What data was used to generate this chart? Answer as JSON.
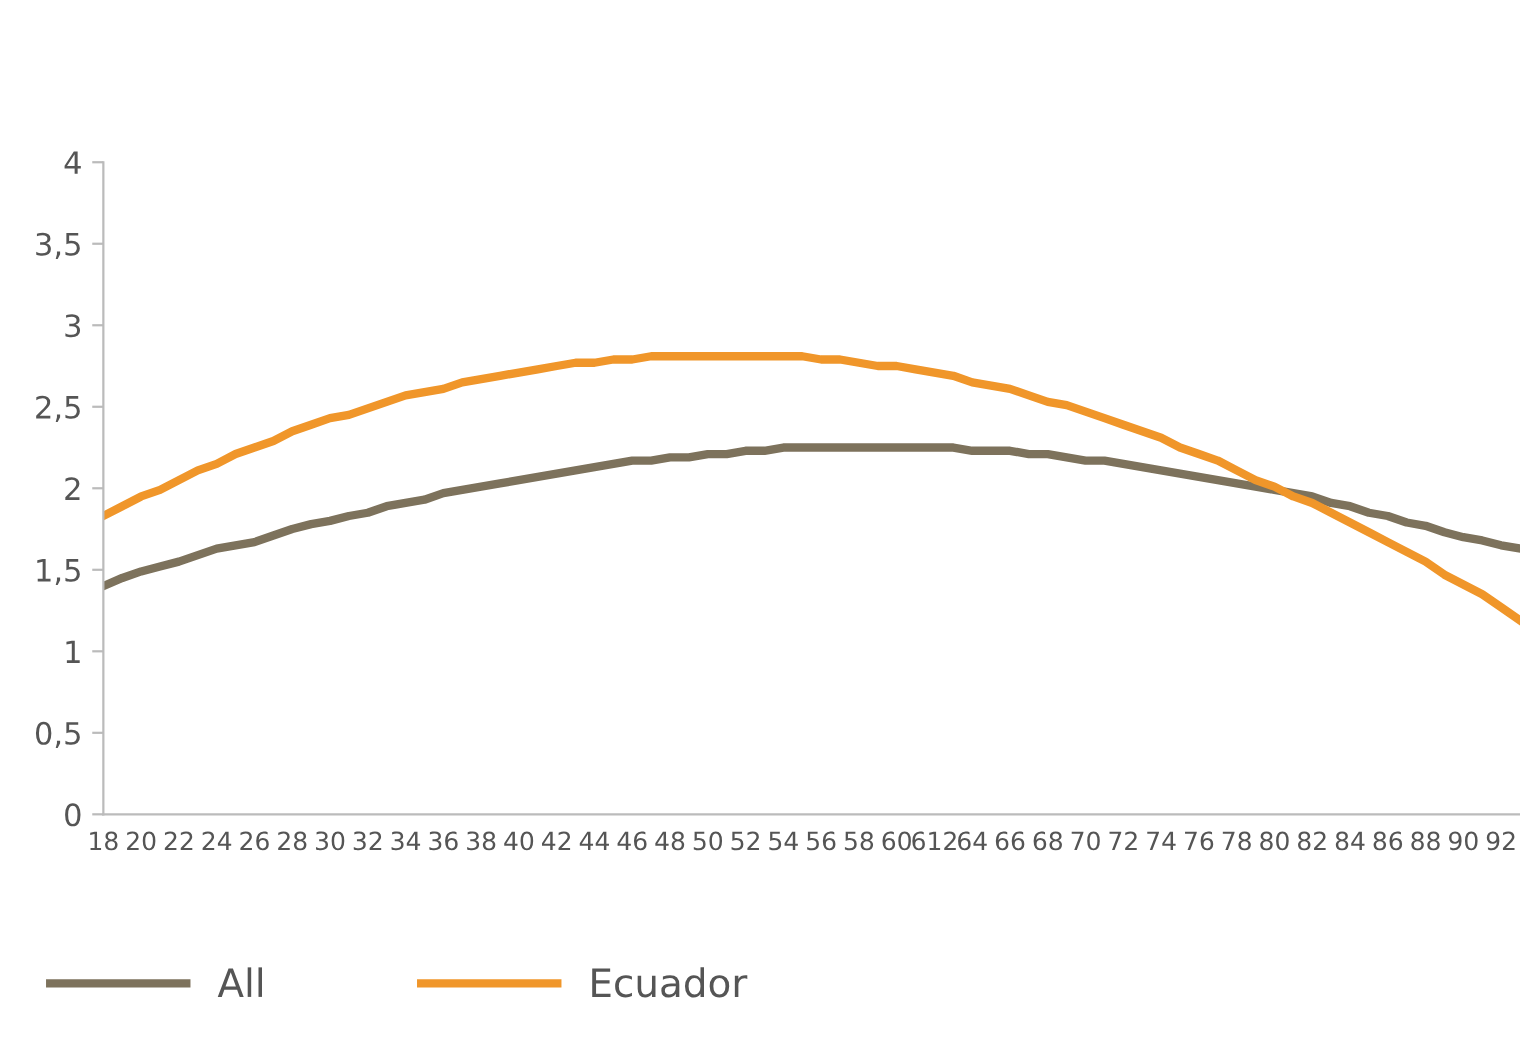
{
  "chart_data": {
    "type": "line",
    "categories": [
      "18",
      null,
      "20",
      null,
      "22",
      null,
      "24",
      null,
      "26",
      null,
      "28",
      null,
      "30",
      null,
      "32",
      null,
      "34",
      null,
      "36",
      null,
      "38",
      null,
      "40",
      null,
      "42",
      null,
      "44",
      null,
      "46",
      null,
      "48",
      null,
      "50",
      null,
      "52",
      null,
      "54",
      null,
      "56",
      null,
      "58",
      null,
      "60",
      null,
      "612",
      null,
      "64",
      null,
      "66",
      null,
      "68",
      null,
      "70",
      null,
      "72",
      null,
      "74",
      null,
      "76",
      null,
      "78",
      null,
      "80",
      null,
      "82",
      null,
      "84",
      null,
      "86",
      null,
      "88",
      null,
      "90",
      null,
      "92",
      null
    ],
    "series": [
      {
        "name": "All",
        "color": "#7d725c",
        "values": [
          1.4,
          1.45,
          1.49,
          1.52,
          1.55,
          1.59,
          1.63,
          1.65,
          1.67,
          1.71,
          1.75,
          1.78,
          1.8,
          1.83,
          1.85,
          1.89,
          1.91,
          1.93,
          1.97,
          1.99,
          2.01,
          2.03,
          2.05,
          2.07,
          2.09,
          2.11,
          2.13,
          2.15,
          2.17,
          2.17,
          2.19,
          2.19,
          2.21,
          2.21,
          2.23,
          2.23,
          2.25,
          2.25,
          2.25,
          2.25,
          2.25,
          2.25,
          2.25,
          2.25,
          2.25,
          2.25,
          2.23,
          2.23,
          2.23,
          2.21,
          2.21,
          2.19,
          2.17,
          2.17,
          2.15,
          2.13,
          2.11,
          2.09,
          2.07,
          2.05,
          2.03,
          2.01,
          1.99,
          1.97,
          1.95,
          1.91,
          1.89,
          1.85,
          1.83,
          1.79,
          1.77,
          1.73,
          1.7,
          1.68,
          1.65,
          1.63
        ]
      },
      {
        "name": "Ecuador",
        "color": "#f0962a",
        "values": [
          1.83,
          1.89,
          1.95,
          1.99,
          2.05,
          2.11,
          2.15,
          2.21,
          2.25,
          2.29,
          2.35,
          2.39,
          2.43,
          2.45,
          2.49,
          2.53,
          2.57,
          2.59,
          2.61,
          2.65,
          2.67,
          2.69,
          2.71,
          2.73,
          2.75,
          2.77,
          2.77,
          2.79,
          2.79,
          2.81,
          2.81,
          2.81,
          2.81,
          2.81,
          2.81,
          2.81,
          2.81,
          2.81,
          2.79,
          2.79,
          2.77,
          2.75,
          2.75,
          2.73,
          2.71,
          2.69,
          2.65,
          2.63,
          2.61,
          2.57,
          2.53,
          2.51,
          2.47,
          2.43,
          2.39,
          2.35,
          2.31,
          2.25,
          2.21,
          2.17,
          2.11,
          2.05,
          2.01,
          1.95,
          1.91,
          1.85,
          1.79,
          1.73,
          1.67,
          1.61,
          1.55,
          1.47,
          1.41,
          1.35,
          1.27,
          1.19
        ]
      }
    ],
    "ylim": [
      0,
      4
    ],
    "yticks": [
      0,
      {
        "value": 0.5,
        "label": "0,5"
      },
      1,
      {
        "value": 1.5,
        "label": "1,5"
      },
      2,
      {
        "value": 2.5,
        "label": "2,5"
      },
      3,
      {
        "value": 3.5,
        "label": "3,5"
      },
      4
    ],
    "grid": false,
    "legend": "bottom left",
    "marker": "none",
    "line_style": "solid"
  }
}
